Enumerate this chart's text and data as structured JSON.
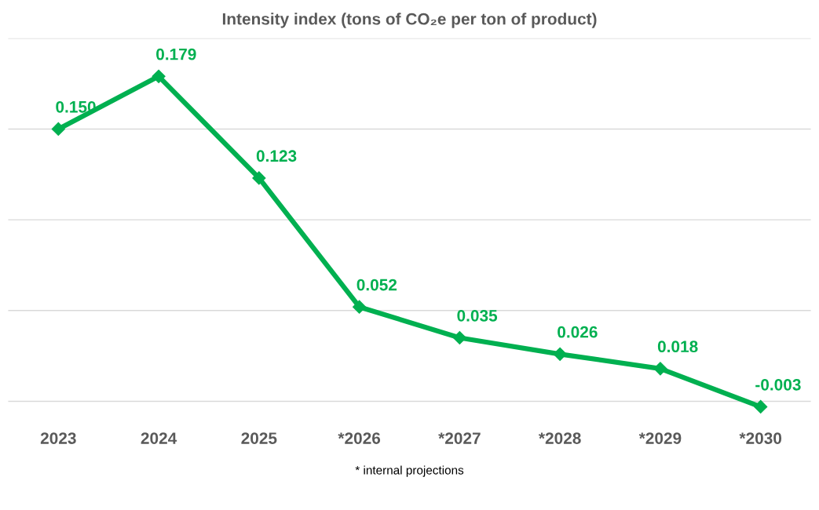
{
  "chart_data": {
    "type": "line",
    "title": "Intensity index (tons of CO₂e per ton of product)",
    "categories": [
      "2023",
      "2024",
      "2025",
      "*2026",
      "*2027",
      "*2028",
      "*2029",
      "*2030"
    ],
    "series": [
      {
        "color": "#00b050",
        "values": [
          0.15,
          0.179,
          0.123,
          0.052,
          0.035,
          0.026,
          0.018,
          -0.003
        ],
        "value_labels": [
          "0.150",
          "0.179",
          "0.123",
          "0.052",
          "0.035",
          "0.026",
          "0.018",
          "-0.003"
        ]
      }
    ],
    "yticks": [
      {
        "value": 0,
        "label": null
      },
      {
        "value": 0.05,
        "label": null
      },
      {
        "value": 0.1,
        "label": null
      },
      {
        "value": 0.15,
        "label": null
      },
      {
        "value": 0.2,
        "label": null
      }
    ],
    "tick_labels": "x",
    "grid": "y",
    "marker": "diamond",
    "line_style": "solid",
    "annotations": [
      "* internal projections"
    ]
  }
}
